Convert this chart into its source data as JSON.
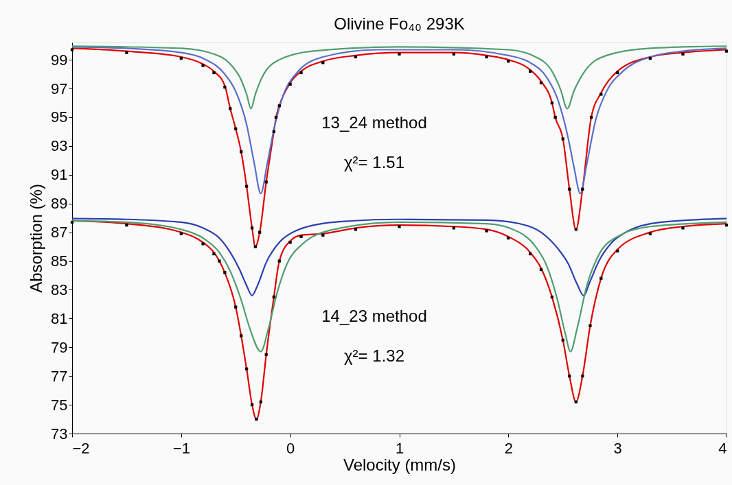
{
  "chart_data": {
    "type": "line",
    "title": "Olivine Fo₄₀ 293K",
    "xlabel": "Velocity (mm/s)",
    "ylabel": "Absorption (%)",
    "xlim": [
      -2,
      4
    ],
    "ylim": [
      73,
      100.2
    ],
    "xticks": [
      -2,
      -1,
      0,
      1,
      2,
      3,
      4
    ],
    "yticks": [
      73,
      75,
      77,
      79,
      81,
      83,
      85,
      87,
      89,
      91,
      93,
      95,
      97,
      99
    ],
    "grid": false,
    "legend": false,
    "marker": "none",
    "line_style": "solid",
    "annotations": [
      "13_24 method",
      "χ²= 1.51",
      "14_23 method",
      "χ²= 1.32"
    ],
    "series": [
      {
        "type": "scatter",
        "marker": "square",
        "color": "#000000",
        "x": [
          -2,
          -1.5,
          -1.0,
          -0.8,
          -0.7,
          -0.6,
          -0.55,
          -0.5,
          -0.45,
          -0.4,
          -0.35,
          -0.32,
          -0.28,
          -0.22,
          -0.15,
          -0.13,
          -0.1,
          0,
          0.1,
          0.3,
          0.6,
          1.0,
          1.5,
          1.8,
          2.0,
          2.2,
          2.3,
          2.4,
          2.43,
          2.5,
          2.56,
          2.62,
          2.68,
          2.76,
          2.85,
          3.0,
          3.3,
          3.6,
          4.0
        ],
        "values": [
          99.7,
          99.5,
          99.1,
          98.6,
          98.1,
          97.1,
          95.6,
          94.2,
          92.6,
          90.2,
          87.3,
          86.0,
          87.0,
          90.5,
          94.0,
          95.0,
          95.8,
          97.3,
          98.1,
          98.8,
          99.2,
          99.4,
          99.4,
          99.2,
          98.9,
          98.2,
          97.4,
          96.0,
          95.0,
          93.5,
          90.0,
          87.2,
          90.0,
          95.0,
          96.6,
          98.1,
          99.1,
          99.4,
          99.6
        ]
      },
      {
        "color": "#e00000",
        "x": [
          -2,
          -1.5,
          -1.0,
          -0.8,
          -0.7,
          -0.6,
          -0.55,
          -0.5,
          -0.45,
          -0.4,
          -0.35,
          -0.32,
          -0.28,
          -0.22,
          -0.15,
          -0.13,
          -0.1,
          0,
          0.1,
          0.3,
          0.6,
          1.0,
          1.5,
          1.8,
          2.0,
          2.2,
          2.3,
          2.4,
          2.43,
          2.5,
          2.56,
          2.62,
          2.68,
          2.76,
          2.85,
          3.0,
          3.3,
          3.6,
          4.0
        ],
        "values": [
          99.8,
          99.6,
          99.2,
          98.7,
          98.2,
          97.2,
          95.6,
          94.2,
          92.6,
          90.2,
          87.3,
          86.0,
          87.0,
          90.5,
          94.0,
          95.0,
          95.8,
          97.4,
          98.2,
          98.9,
          99.3,
          99.5,
          99.5,
          99.3,
          99.0,
          98.3,
          97.5,
          96.0,
          95.0,
          93.5,
          90.0,
          87.2,
          90.0,
          95.0,
          96.7,
          98.2,
          99.2,
          99.5,
          99.7
        ]
      },
      {
        "color": "#5a6fc8",
        "x": [
          -2,
          -1.5,
          -1,
          -0.8,
          -0.6,
          -0.5,
          -0.4,
          -0.33,
          -0.27,
          -0.21,
          -0.14,
          -0.05,
          0.05,
          0.3,
          0.8,
          1.5,
          2.0,
          2.2,
          2.35,
          2.45,
          2.55,
          2.6,
          2.66,
          2.72,
          2.8,
          2.9,
          3.05,
          3.3,
          3.6,
          4.0
        ],
        "values": [
          99.9,
          99.8,
          99.5,
          99.1,
          98.0,
          96.8,
          94.5,
          91.8,
          89.7,
          91.8,
          94.5,
          96.8,
          98.0,
          99.2,
          99.7,
          99.7,
          99.3,
          98.8,
          97.8,
          96.3,
          93.5,
          91.6,
          89.7,
          91.8,
          94.8,
          96.8,
          98.2,
          99.2,
          99.6,
          99.8
        ]
      },
      {
        "color": "#4f9e6e",
        "x": [
          -2,
          -1,
          -0.7,
          -0.55,
          -0.45,
          -0.4,
          -0.36,
          -0.32,
          -0.25,
          -0.1,
          0.2,
          1.0,
          2.0,
          2.25,
          2.4,
          2.48,
          2.54,
          2.6,
          2.7,
          2.9,
          3.3,
          4.0
        ],
        "values": [
          99.95,
          99.8,
          99.4,
          98.7,
          97.6,
          96.6,
          95.6,
          96.6,
          97.9,
          99.0,
          99.6,
          99.9,
          99.7,
          99.2,
          98.2,
          96.9,
          95.6,
          96.8,
          98.2,
          99.3,
          99.8,
          99.95
        ]
      },
      {
        "type": "scatter",
        "marker": "square",
        "color": "#000000",
        "x": [
          -2,
          -1.5,
          -1.0,
          -0.8,
          -0.7,
          -0.65,
          -0.6,
          -0.5,
          -0.45,
          -0.4,
          -0.35,
          -0.31,
          -0.27,
          -0.22,
          -0.15,
          -0.1,
          0,
          0.1,
          0.3,
          0.6,
          1.0,
          1.5,
          1.8,
          2.0,
          2.2,
          2.3,
          2.4,
          2.5,
          2.56,
          2.62,
          2.68,
          2.75,
          2.85,
          3.0,
          3.3,
          3.6,
          4.0
        ],
        "values": [
          87.7,
          87.5,
          86.9,
          86.2,
          85.5,
          85.0,
          84.2,
          81.8,
          79.8,
          77.5,
          75.0,
          74.0,
          75.2,
          78.5,
          82.5,
          85.0,
          86.3,
          86.7,
          86.8,
          87.2,
          87.4,
          87.3,
          87.1,
          86.6,
          85.5,
          84.4,
          82.5,
          79.5,
          77.0,
          75.2,
          77.0,
          80.5,
          83.8,
          85.7,
          86.9,
          87.3,
          87.5
        ]
      },
      {
        "color": "#e00000",
        "x": [
          -2,
          -1.5,
          -1.0,
          -0.8,
          -0.7,
          -0.65,
          -0.6,
          -0.5,
          -0.45,
          -0.4,
          -0.35,
          -0.31,
          -0.27,
          -0.22,
          -0.15,
          -0.1,
          0,
          0.1,
          0.3,
          0.6,
          1.0,
          1.5,
          1.8,
          2.0,
          2.2,
          2.3,
          2.4,
          2.5,
          2.56,
          2.62,
          2.68,
          2.75,
          2.85,
          3.0,
          3.3,
          3.6,
          4.0
        ],
        "values": [
          87.8,
          87.6,
          87.0,
          86.3,
          85.6,
          85.0,
          84.2,
          81.8,
          79.8,
          77.5,
          75.0,
          74.0,
          75.2,
          78.5,
          82.5,
          85.0,
          86.4,
          86.8,
          86.9,
          87.3,
          87.5,
          87.4,
          87.2,
          86.7,
          85.6,
          84.5,
          82.5,
          79.5,
          77.0,
          75.2,
          77.0,
          80.5,
          83.8,
          85.8,
          87.0,
          87.4,
          87.6
        ]
      },
      {
        "color": "#2b3fb0",
        "x": [
          -2,
          -1.5,
          -1,
          -0.8,
          -0.65,
          -0.55,
          -0.47,
          -0.4,
          -0.35,
          -0.3,
          -0.22,
          -0.1,
          0.05,
          0.4,
          1.0,
          1.8,
          2.1,
          2.3,
          2.45,
          2.55,
          2.63,
          2.69,
          2.75,
          2.83,
          2.95,
          3.1,
          3.4,
          4.0
        ],
        "values": [
          87.95,
          87.9,
          87.7,
          87.3,
          86.6,
          85.6,
          84.5,
          83.3,
          82.6,
          83.3,
          84.9,
          86.3,
          87.1,
          87.7,
          87.9,
          87.85,
          87.6,
          87.0,
          85.9,
          84.8,
          83.4,
          82.6,
          83.6,
          85.0,
          86.3,
          87.1,
          87.7,
          87.95
        ]
      },
      {
        "color": "#4f9e6e",
        "x": [
          -2,
          -1.5,
          -1,
          -0.8,
          -0.65,
          -0.55,
          -0.45,
          -0.37,
          -0.27,
          -0.2,
          -0.12,
          -0.03,
          0.1,
          0.4,
          1.0,
          1.8,
          2.1,
          2.25,
          2.35,
          2.45,
          2.52,
          2.57,
          2.63,
          2.72,
          2.82,
          3.0,
          3.3,
          4.0
        ],
        "values": [
          87.8,
          87.7,
          87.2,
          86.6,
          85.6,
          84.3,
          82.3,
          80.3,
          78.7,
          80.3,
          82.8,
          84.8,
          86.1,
          87.2,
          87.7,
          87.6,
          87.0,
          86.0,
          84.7,
          82.3,
          80.0,
          78.7,
          80.3,
          83.3,
          85.3,
          86.7,
          87.4,
          87.7
        ]
      }
    ]
  }
}
